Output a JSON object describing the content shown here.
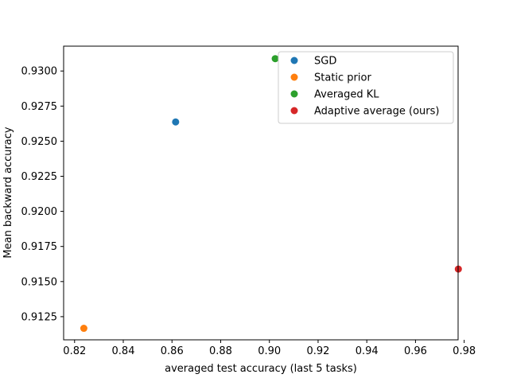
{
  "chart_data": {
    "type": "scatter",
    "title": "",
    "xlabel": "averaged test accuracy (last 5 tasks)",
    "ylabel": "Mean backward accuracy",
    "xlim": [
      0.8155,
      0.9775
    ],
    "ylim": [
      0.91085,
      0.93177
    ],
    "xticks": [
      "0.82",
      "0.84",
      "0.86",
      "0.88",
      "0.90",
      "0.92",
      "0.94",
      "0.96",
      "0.98"
    ],
    "yticks": [
      "0.9125",
      "0.9150",
      "0.9175",
      "0.9200",
      "0.9225",
      "0.9250",
      "0.9275",
      "0.9300"
    ],
    "grid": false,
    "legend_position": "top-right",
    "series": [
      {
        "name": "SGD",
        "color": "#1f77b4",
        "points": [
          {
            "x": 0.8615,
            "y": 0.92637
          }
        ]
      },
      {
        "name": "Static prior",
        "color": "#ff7f0e",
        "points": [
          {
            "x": 0.8238,
            "y": 0.91167
          }
        ]
      },
      {
        "name": "Averaged KL",
        "color": "#2ca02c",
        "points": [
          {
            "x": 0.9024,
            "y": 0.93088
          }
        ]
      },
      {
        "name": "Adaptive average (ours)",
        "color": "#d62728",
        "points": [
          {
            "x": 0.9776,
            "y": 0.91589
          }
        ]
      }
    ]
  }
}
